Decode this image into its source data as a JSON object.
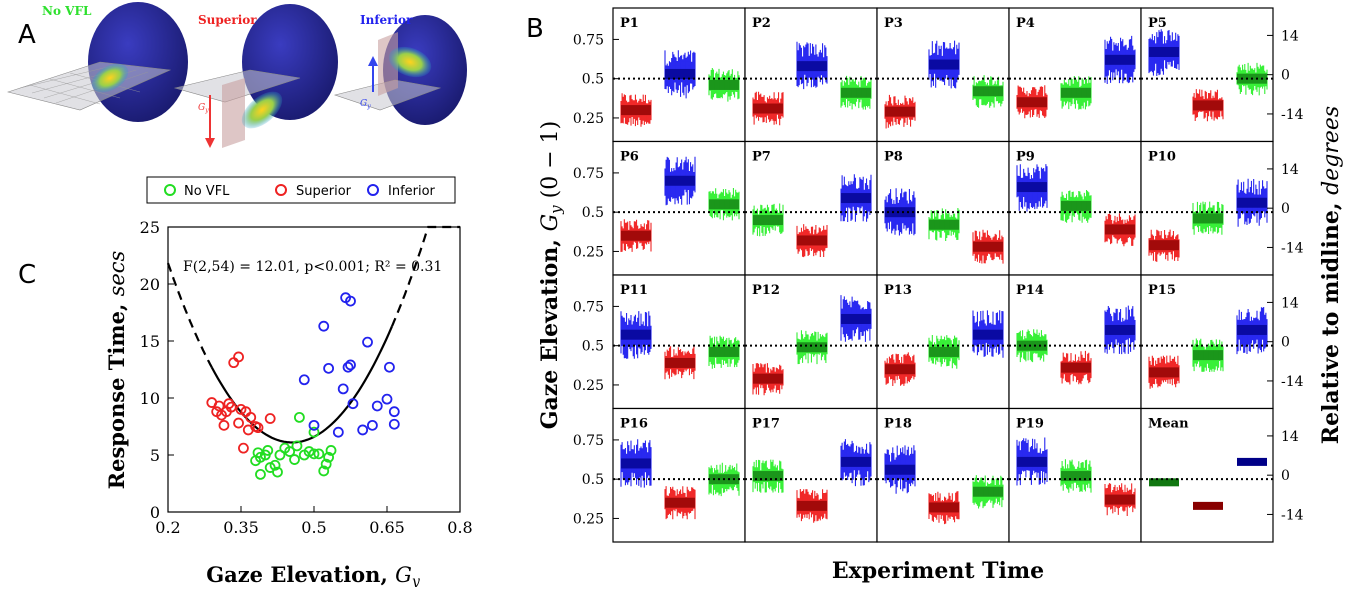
{
  "panel_letters": {
    "a": "A",
    "b": "B",
    "c": "C"
  },
  "panel_a": {
    "labels": [
      "No VFL",
      "Superior",
      "Inferior"
    ],
    "label_colors": [
      "#2ee02e",
      "#ee2222",
      "#2222ee"
    ],
    "axis_label": "G",
    "axis_subscript": "y"
  },
  "chart_data": [
    {
      "type": "scatter",
      "panel": "C",
      "xlabel": "Gaze Elevation, ",
      "xlabel_italic": "G",
      "xlabel_sub": "y",
      "ylabel": "Response Time, ",
      "ylabel_italic": "secs",
      "xlim": [
        0.2,
        0.8
      ],
      "ylim": [
        0,
        25
      ],
      "xticks": [
        "0.2",
        "0.35",
        "0.5",
        "0.65",
        "0.8"
      ],
      "yticks": [
        "0",
        "5",
        "10",
        "15",
        "20",
        "25"
      ],
      "annotation": "F(2,54) = 12.01, p<0.001; R² = 0.31",
      "legend": {
        "position": "top",
        "entries": [
          "No VFL",
          "Superior",
          "Inferior"
        ]
      },
      "fit_curve": {
        "vertex_x": 0.455,
        "vertex_y": 6.1,
        "a": 242
      },
      "series": [
        {
          "name": "No VFL",
          "color": "#22dd22",
          "points": [
            [
              0.38,
              4.5
            ],
            [
              0.385,
              5.2
            ],
            [
              0.39,
              3.3
            ],
            [
              0.39,
              4.8
            ],
            [
              0.4,
              5.0
            ],
            [
              0.405,
              5.4
            ],
            [
              0.41,
              3.9
            ],
            [
              0.42,
              4.1
            ],
            [
              0.425,
              3.5
            ],
            [
              0.43,
              5.0
            ],
            [
              0.44,
              5.6
            ],
            [
              0.45,
              5.3
            ],
            [
              0.465,
              5.8
            ],
            [
              0.47,
              8.3
            ],
            [
              0.48,
              5.0
            ],
            [
              0.49,
              5.3
            ],
            [
              0.5,
              7.0
            ],
            [
              0.51,
              5.1
            ],
            [
              0.52,
              3.6
            ],
            [
              0.525,
              4.2
            ],
            [
              0.53,
              4.8
            ],
            [
              0.535,
              5.4
            ],
            [
              0.5,
              5.1
            ],
            [
              0.46,
              4.6
            ]
          ]
        },
        {
          "name": "Superior",
          "color": "#ee2222",
          "points": [
            [
              0.29,
              9.6
            ],
            [
              0.3,
              8.8
            ],
            [
              0.305,
              9.3
            ],
            [
              0.31,
              8.5
            ],
            [
              0.315,
              7.6
            ],
            [
              0.32,
              8.8
            ],
            [
              0.325,
              9.5
            ],
            [
              0.33,
              9.2
            ],
            [
              0.335,
              13.1
            ],
            [
              0.345,
              13.6
            ],
            [
              0.345,
              7.8
            ],
            [
              0.35,
              9.0
            ],
            [
              0.355,
              5.6
            ],
            [
              0.36,
              8.8
            ],
            [
              0.365,
              7.2
            ],
            [
              0.37,
              8.3
            ],
            [
              0.38,
              7.5
            ],
            [
              0.385,
              7.4
            ],
            [
              0.41,
              8.2
            ]
          ]
        },
        {
          "name": "Inferior",
          "color": "#2222ee",
          "points": [
            [
              0.48,
              11.6
            ],
            [
              0.5,
              7.6
            ],
            [
              0.52,
              16.3
            ],
            [
              0.53,
              12.6
            ],
            [
              0.55,
              7.0
            ],
            [
              0.56,
              10.8
            ],
            [
              0.565,
              18.8
            ],
            [
              0.57,
              12.7
            ],
            [
              0.575,
              18.5
            ],
            [
              0.575,
              12.9
            ],
            [
              0.58,
              9.5
            ],
            [
              0.6,
              7.2
            ],
            [
              0.61,
              14.9
            ],
            [
              0.62,
              7.6
            ],
            [
              0.63,
              9.3
            ],
            [
              0.65,
              9.9
            ],
            [
              0.655,
              12.7
            ],
            [
              0.665,
              8.8
            ],
            [
              0.665,
              7.7
            ]
          ]
        }
      ]
    },
    {
      "type": "line",
      "panel": "B",
      "xlabel": "Experiment Time",
      "ylabel": "Gaze Elevation, ",
      "ylabel_italic": "G",
      "ylabel_sub": "y",
      "ylabel_suffix": " (0 − 1)",
      "ylabel_right": "Relative to midline, ",
      "ylabel_right_italic": "degrees",
      "ylim": [
        0.1,
        0.95
      ],
      "yticks_left": [
        "0.75",
        "0.5",
        "0.25"
      ],
      "yticks_right": [
        "14",
        "0",
        "-14"
      ],
      "midline": 0.5,
      "colors": {
        "No VFL": "#22ee22",
        "Superior": "#ee1111",
        "Inferior": "#1111ee"
      },
      "mean_colors": {
        "No VFL": "#117711",
        "Superior": "#880000",
        "Inferior": "#000088"
      },
      "panels": [
        {
          "label": "P1",
          "blocks": [
            [
              "Superior",
              0.3
            ],
            [
              "Inferior",
              0.53
            ],
            [
              "No VFL",
              0.46
            ]
          ]
        },
        {
          "label": "P2",
          "blocks": [
            [
              "Superior",
              0.31
            ],
            [
              "Inferior",
              0.58
            ],
            [
              "No VFL",
              0.41
            ]
          ]
        },
        {
          "label": "P3",
          "blocks": [
            [
              "Superior",
              0.29
            ],
            [
              "Inferior",
              0.59
            ],
            [
              "No VFL",
              0.42
            ]
          ]
        },
        {
          "label": "P4",
          "blocks": [
            [
              "Superior",
              0.35
            ],
            [
              "No VFL",
              0.41
            ],
            [
              "Inferior",
              0.62
            ]
          ]
        },
        {
          "label": "P5",
          "blocks": [
            [
              "Inferior",
              0.67
            ],
            [
              "Superior",
              0.33
            ],
            [
              "No VFL",
              0.5
            ]
          ]
        },
        {
          "label": "P6",
          "blocks": [
            [
              "Superior",
              0.35
            ],
            [
              "Inferior",
              0.7
            ],
            [
              "No VFL",
              0.55
            ]
          ]
        },
        {
          "label": "P7",
          "blocks": [
            [
              "No VFL",
              0.45
            ],
            [
              "Superior",
              0.32
            ],
            [
              "Inferior",
              0.59
            ]
          ]
        },
        {
          "label": "P8",
          "blocks": [
            [
              "Inferior",
              0.5
            ],
            [
              "No VFL",
              0.42
            ],
            [
              "Superior",
              0.28
            ]
          ]
        },
        {
          "label": "P9",
          "blocks": [
            [
              "Inferior",
              0.66
            ],
            [
              "No VFL",
              0.54
            ],
            [
              "Superior",
              0.39
            ]
          ]
        },
        {
          "label": "P10",
          "blocks": [
            [
              "Superior",
              0.29
            ],
            [
              "No VFL",
              0.46
            ],
            [
              "Inferior",
              0.56
            ]
          ]
        },
        {
          "label": "P11",
          "blocks": [
            [
              "Inferior",
              0.57
            ],
            [
              "Superior",
              0.39
            ],
            [
              "No VFL",
              0.46
            ]
          ]
        },
        {
          "label": "P12",
          "blocks": [
            [
              "Superior",
              0.29
            ],
            [
              "No VFL",
              0.49
            ],
            [
              "Inferior",
              0.67
            ]
          ]
        },
        {
          "label": "P13",
          "blocks": [
            [
              "Superior",
              0.35
            ],
            [
              "No VFL",
              0.46
            ],
            [
              "Inferior",
              0.57
            ]
          ]
        },
        {
          "label": "P14",
          "blocks": [
            [
              "No VFL",
              0.5
            ],
            [
              "Superior",
              0.36
            ],
            [
              "Inferior",
              0.6
            ]
          ]
        },
        {
          "label": "P15",
          "blocks": [
            [
              "Superior",
              0.33
            ],
            [
              "No VFL",
              0.44
            ],
            [
              "Inferior",
              0.6
            ]
          ]
        },
        {
          "label": "P16",
          "blocks": [
            [
              "Inferior",
              0.6
            ],
            [
              "Superior",
              0.35
            ],
            [
              "No VFL",
              0.5
            ]
          ]
        },
        {
          "label": "P17",
          "blocks": [
            [
              "No VFL",
              0.52
            ],
            [
              "Superior",
              0.33
            ],
            [
              "Inferior",
              0.61
            ]
          ]
        },
        {
          "label": "P18",
          "blocks": [
            [
              "Inferior",
              0.56
            ],
            [
              "Superior",
              0.32
            ],
            [
              "No VFL",
              0.42
            ]
          ]
        },
        {
          "label": "P19",
          "blocks": [
            [
              "Inferior",
              0.61
            ],
            [
              "No VFL",
              0.52
            ],
            [
              "Superior",
              0.37
            ]
          ]
        },
        {
          "label": "Mean",
          "mean": true,
          "blocks": [
            [
              "No VFL",
              0.48
            ],
            [
              "Superior",
              0.33
            ],
            [
              "Inferior",
              0.61
            ]
          ]
        }
      ]
    }
  ]
}
